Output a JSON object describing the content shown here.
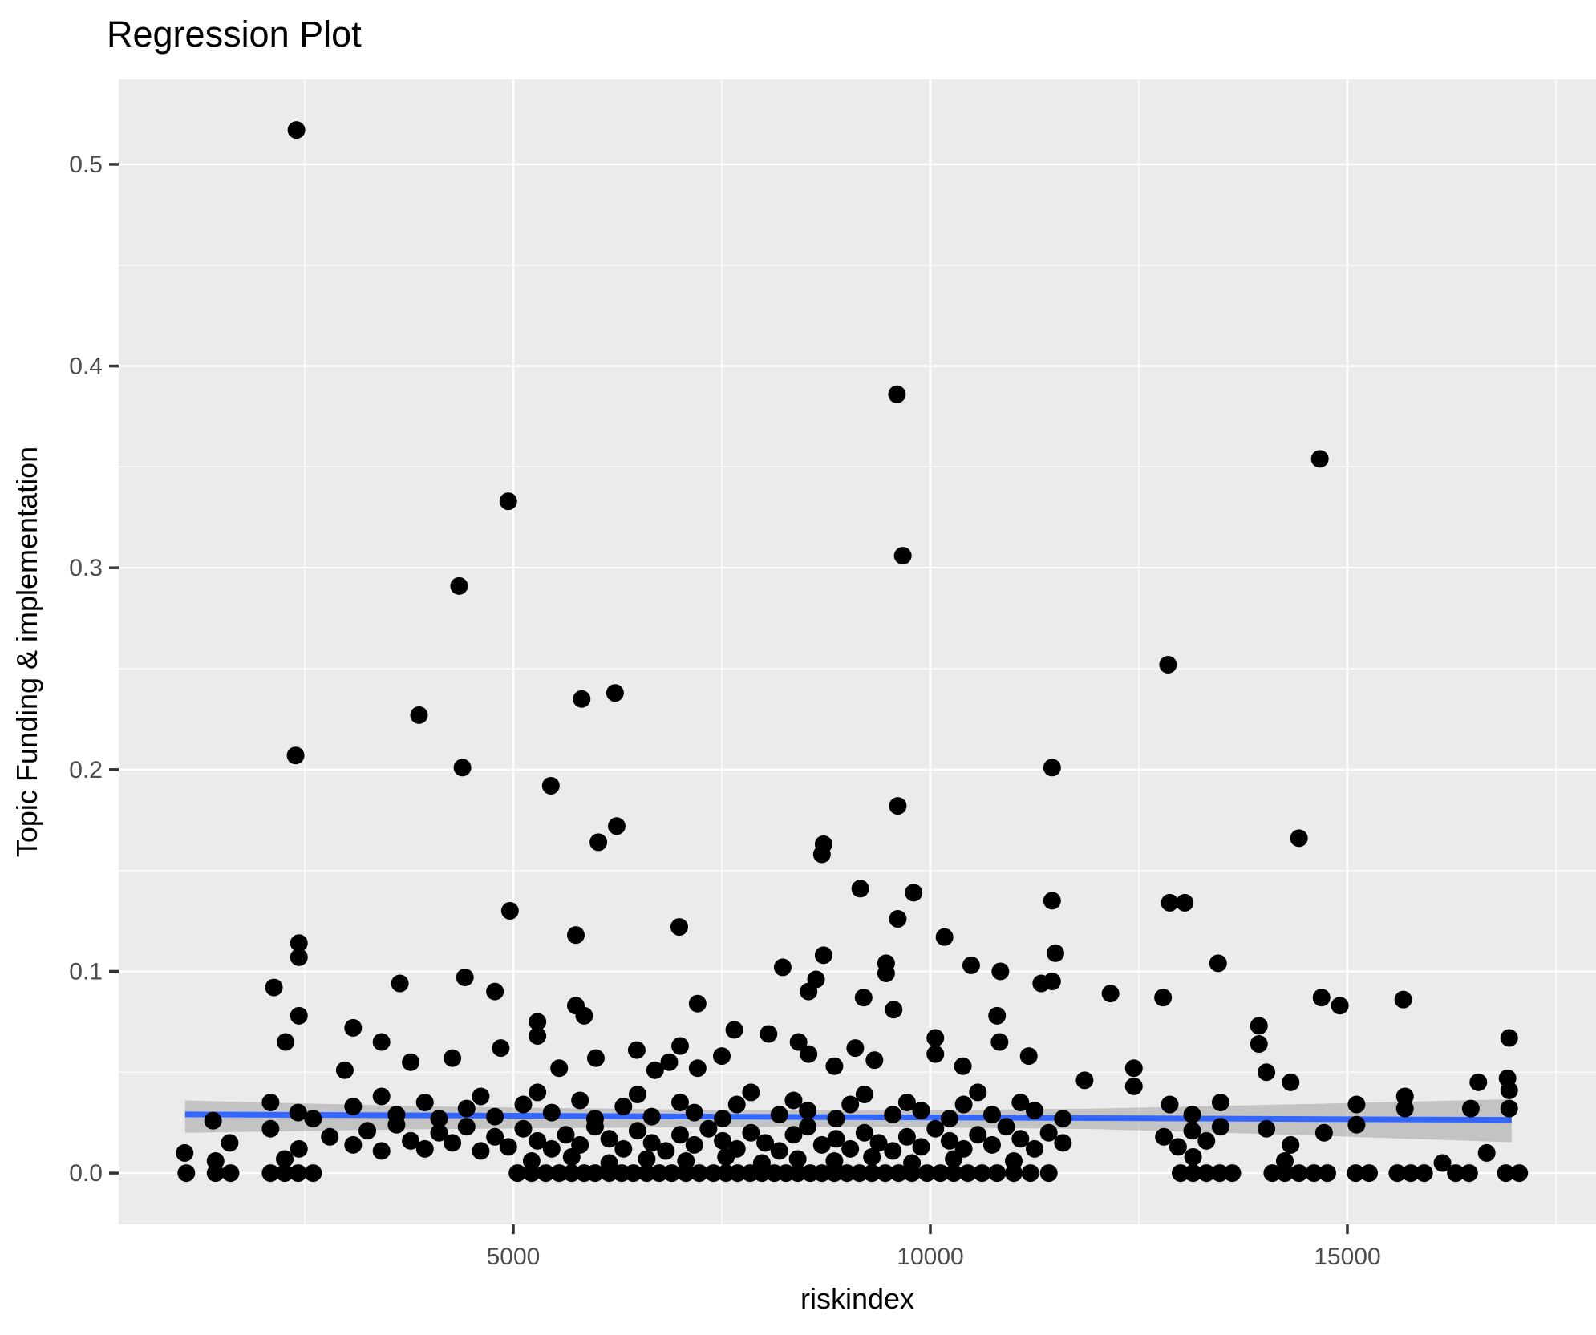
{
  "chart": {
    "title": "Regression Plot",
    "xlabel": "riskindex",
    "ylabel": "Topic Funding & implementation"
  },
  "chart_data": {
    "type": "scatter",
    "title": "Regression Plot",
    "xlabel": "riskindex",
    "ylabel": "Topic Funding & implementation",
    "legend": false,
    "grid": true,
    "panel_bg": "#EBEBEB",
    "grid_color": "#FFFFFF",
    "point_color": "#000000",
    "smooth_line_color": "#3366FF",
    "band_fill": "#8C8C8C",
    "band_opacity": 0.42,
    "tick_color": "#333333",
    "axis_text_color": "#4D4D4D",
    "x_domain": [
      269,
      17981
    ],
    "y_domain": [
      -0.0254,
      0.5421
    ],
    "x_major_ticks": [
      5000,
      10000,
      15000
    ],
    "x_tick_labels": [
      "5000",
      "10000",
      "15000"
    ],
    "x_minor_gridlines": [
      2500,
      7500,
      12500,
      17500
    ],
    "y_major_ticks": [
      0.0,
      0.1,
      0.2,
      0.3,
      0.4,
      0.5
    ],
    "y_tick_labels": [
      "0.0",
      "0.1",
      "0.2",
      "0.3",
      "0.4",
      "0.5"
    ],
    "y_minor_gridlines": [
      0.05,
      0.15,
      0.25,
      0.35,
      0.45
    ],
    "point_radius": 11,
    "regression_line": [
      [
        1065,
        0.0291
      ],
      [
        16970,
        0.0264
      ]
    ],
    "confidence_band": {
      "upper": [
        [
          1065,
          0.036
        ],
        [
          4000,
          0.033
        ],
        [
          7000,
          0.0315
        ],
        [
          9500,
          0.031
        ],
        [
          12000,
          0.032
        ],
        [
          14500,
          0.0342
        ],
        [
          16970,
          0.0366
        ]
      ],
      "lower": [
        [
          1065,
          0.02
        ],
        [
          4000,
          0.0218
        ],
        [
          7000,
          0.0228
        ],
        [
          9500,
          0.023
        ],
        [
          12000,
          0.0218
        ],
        [
          14500,
          0.0188
        ],
        [
          16970,
          0.0153
        ]
      ]
    },
    "points": [
      [
        2400,
        0.517
      ],
      [
        9600,
        0.386
      ],
      [
        14670,
        0.354
      ],
      [
        4940,
        0.333
      ],
      [
        9670,
        0.306
      ],
      [
        4350,
        0.291
      ],
      [
        12850,
        0.252
      ],
      [
        6220,
        0.238
      ],
      [
        5820,
        0.235
      ],
      [
        3870,
        0.227
      ],
      [
        2390,
        0.207
      ],
      [
        4390,
        0.201
      ],
      [
        11460,
        0.201
      ],
      [
        5450,
        0.192
      ],
      [
        9610,
        0.182
      ],
      [
        6240,
        0.172
      ],
      [
        14420,
        0.166
      ],
      [
        6020,
        0.164
      ],
      [
        8720,
        0.163
      ],
      [
        8700,
        0.158
      ],
      [
        9160,
        0.141
      ],
      [
        9800,
        0.139
      ],
      [
        11460,
        0.135
      ],
      [
        12870,
        0.134
      ],
      [
        13050,
        0.134
      ],
      [
        4960,
        0.13
      ],
      [
        9610,
        0.126
      ],
      [
        6990,
        0.122
      ],
      [
        5750,
        0.118
      ],
      [
        10170,
        0.117
      ],
      [
        2430,
        0.114
      ],
      [
        11500,
        0.109
      ],
      [
        8720,
        0.108
      ],
      [
        2430,
        0.107
      ],
      [
        13450,
        0.104
      ],
      [
        9470,
        0.104
      ],
      [
        10490,
        0.103
      ],
      [
        8230,
        0.102
      ],
      [
        10840,
        0.1
      ],
      [
        9470,
        0.099
      ],
      [
        4420,
        0.097
      ],
      [
        8630,
        0.096
      ],
      [
        11460,
        0.095
      ],
      [
        11330,
        0.094
      ],
      [
        3640,
        0.094
      ],
      [
        2130,
        0.092
      ],
      [
        8540,
        0.09
      ],
      [
        4780,
        0.09
      ],
      [
        12160,
        0.089
      ],
      [
        12790,
        0.087
      ],
      [
        14690,
        0.087
      ],
      [
        9200,
        0.087
      ],
      [
        15670,
        0.086
      ],
      [
        7210,
        0.084
      ],
      [
        5750,
        0.083
      ],
      [
        14910,
        0.083
      ],
      [
        9560,
        0.081
      ],
      [
        10800,
        0.078
      ],
      [
        2430,
        0.078
      ],
      [
        5850,
        0.078
      ],
      [
        13940,
        0.073
      ],
      [
        16940,
        0.067
      ],
      [
        13940,
        0.064
      ],
      [
        2270,
        0.065
      ],
      [
        3080,
        0.072
      ],
      [
        7650,
        0.071
      ],
      [
        8060,
        0.069
      ],
      [
        5290,
        0.075
      ],
      [
        5290,
        0.068
      ],
      [
        10060,
        0.067
      ],
      [
        3420,
        0.065
      ],
      [
        8420,
        0.065
      ],
      [
        10830,
        0.065
      ],
      [
        7000,
        0.063
      ],
      [
        9100,
        0.062
      ],
      [
        4850,
        0.062
      ],
      [
        6480,
        0.061
      ],
      [
        10060,
        0.059
      ],
      [
        8540,
        0.059
      ],
      [
        7500,
        0.058
      ],
      [
        11180,
        0.058
      ],
      [
        5990,
        0.057
      ],
      [
        4270,
        0.057
      ],
      [
        9330,
        0.056
      ],
      [
        6870,
        0.055
      ],
      [
        3770,
        0.055
      ],
      [
        8850,
        0.053
      ],
      [
        10390,
        0.053
      ],
      [
        12440,
        0.052
      ],
      [
        7210,
        0.052
      ],
      [
        5550,
        0.052
      ],
      [
        2980,
        0.051
      ],
      [
        6700,
        0.051
      ],
      [
        14030,
        0.05
      ],
      [
        16920,
        0.047
      ],
      [
        16940,
        0.041
      ],
      [
        16570,
        0.045
      ],
      [
        14320,
        0.045
      ],
      [
        12440,
        0.043
      ],
      [
        11850,
        0.046
      ],
      [
        1400,
        0.026
      ],
      [
        2090,
        0.035
      ],
      [
        2420,
        0.03
      ],
      [
        2600,
        0.027
      ],
      [
        3080,
        0.033
      ],
      [
        3420,
        0.038
      ],
      [
        3600,
        0.029
      ],
      [
        3940,
        0.035
      ],
      [
        4110,
        0.027
      ],
      [
        4440,
        0.032
      ],
      [
        4610,
        0.038
      ],
      [
        4780,
        0.028
      ],
      [
        5120,
        0.034
      ],
      [
        5290,
        0.04
      ],
      [
        5460,
        0.03
      ],
      [
        5800,
        0.036
      ],
      [
        5980,
        0.027
      ],
      [
        6320,
        0.033
      ],
      [
        6490,
        0.039
      ],
      [
        6660,
        0.028
      ],
      [
        7000,
        0.035
      ],
      [
        7170,
        0.03
      ],
      [
        7510,
        0.027
      ],
      [
        7680,
        0.034
      ],
      [
        7850,
        0.04
      ],
      [
        8190,
        0.029
      ],
      [
        8360,
        0.036
      ],
      [
        8530,
        0.031
      ],
      [
        8870,
        0.027
      ],
      [
        9040,
        0.034
      ],
      [
        9210,
        0.039
      ],
      [
        9550,
        0.029
      ],
      [
        9720,
        0.035
      ],
      [
        9890,
        0.031
      ],
      [
        10230,
        0.027
      ],
      [
        10400,
        0.034
      ],
      [
        10570,
        0.04
      ],
      [
        10740,
        0.029
      ],
      [
        11080,
        0.035
      ],
      [
        11250,
        0.031
      ],
      [
        11590,
        0.027
      ],
      [
        12870,
        0.034
      ],
      [
        13140,
        0.029
      ],
      [
        13480,
        0.035
      ],
      [
        15110,
        0.034
      ],
      [
        15110,
        0.024
      ],
      [
        15690,
        0.038
      ],
      [
        15690,
        0.032
      ],
      [
        16480,
        0.032
      ],
      [
        16940,
        0.032
      ],
      [
        1060,
        0.01
      ],
      [
        1600,
        0.015
      ],
      [
        2090,
        0.022
      ],
      [
        2430,
        0.012
      ],
      [
        2800,
        0.018
      ],
      [
        3080,
        0.014
      ],
      [
        3250,
        0.021
      ],
      [
        3420,
        0.011
      ],
      [
        3600,
        0.024
      ],
      [
        3770,
        0.016
      ],
      [
        3940,
        0.012
      ],
      [
        4110,
        0.02
      ],
      [
        4270,
        0.015
      ],
      [
        4440,
        0.023
      ],
      [
        4610,
        0.011
      ],
      [
        4780,
        0.018
      ],
      [
        4940,
        0.013
      ],
      [
        5120,
        0.022
      ],
      [
        5290,
        0.016
      ],
      [
        5460,
        0.012
      ],
      [
        5630,
        0.019
      ],
      [
        5800,
        0.014
      ],
      [
        5980,
        0.023
      ],
      [
        6150,
        0.017
      ],
      [
        6320,
        0.012
      ],
      [
        6490,
        0.021
      ],
      [
        6660,
        0.015
      ],
      [
        6830,
        0.011
      ],
      [
        7000,
        0.019
      ],
      [
        7170,
        0.014
      ],
      [
        7340,
        0.022
      ],
      [
        7510,
        0.016
      ],
      [
        7680,
        0.012
      ],
      [
        7850,
        0.02
      ],
      [
        8020,
        0.015
      ],
      [
        8190,
        0.011
      ],
      [
        8360,
        0.019
      ],
      [
        8530,
        0.023
      ],
      [
        8700,
        0.014
      ],
      [
        8870,
        0.017
      ],
      [
        9040,
        0.012
      ],
      [
        9210,
        0.02
      ],
      [
        9380,
        0.015
      ],
      [
        9550,
        0.011
      ],
      [
        9720,
        0.018
      ],
      [
        9890,
        0.013
      ],
      [
        10060,
        0.022
      ],
      [
        10230,
        0.016
      ],
      [
        10400,
        0.012
      ],
      [
        10570,
        0.019
      ],
      [
        10740,
        0.014
      ],
      [
        10910,
        0.023
      ],
      [
        11080,
        0.017
      ],
      [
        11250,
        0.012
      ],
      [
        11420,
        0.02
      ],
      [
        11590,
        0.015
      ],
      [
        12800,
        0.018
      ],
      [
        12970,
        0.013
      ],
      [
        13140,
        0.021
      ],
      [
        13310,
        0.016
      ],
      [
        13480,
        0.023
      ],
      [
        14030,
        0.022
      ],
      [
        14320,
        0.014
      ],
      [
        14720,
        0.02
      ],
      [
        16670,
        0.01
      ],
      [
        16140,
        0.005
      ],
      [
        1080,
        0
      ],
      [
        1430,
        0
      ],
      [
        1610,
        0
      ],
      [
        2090,
        0
      ],
      [
        2260,
        0
      ],
      [
        2420,
        0
      ],
      [
        2600,
        0
      ],
      [
        5050,
        0
      ],
      [
        5220,
        0
      ],
      [
        5390,
        0
      ],
      [
        5550,
        0
      ],
      [
        5700,
        0
      ],
      [
        5850,
        0
      ],
      [
        5980,
        0
      ],
      [
        6150,
        0
      ],
      [
        6300,
        0
      ],
      [
        6440,
        0
      ],
      [
        6600,
        0
      ],
      [
        6750,
        0
      ],
      [
        6900,
        0
      ],
      [
        7070,
        0
      ],
      [
        7230,
        0
      ],
      [
        7400,
        0
      ],
      [
        7550,
        0
      ],
      [
        7690,
        0
      ],
      [
        7840,
        0
      ],
      [
        7980,
        0
      ],
      [
        8130,
        0
      ],
      [
        8270,
        0
      ],
      [
        8410,
        0
      ],
      [
        8560,
        0
      ],
      [
        8700,
        0
      ],
      [
        8850,
        0
      ],
      [
        9000,
        0
      ],
      [
        9150,
        0
      ],
      [
        9300,
        0
      ],
      [
        9460,
        0
      ],
      [
        9620,
        0
      ],
      [
        9780,
        0
      ],
      [
        9960,
        0
      ],
      [
        10120,
        0
      ],
      [
        10280,
        0
      ],
      [
        10450,
        0
      ],
      [
        10620,
        0
      ],
      [
        10800,
        0
      ],
      [
        11000,
        0
      ],
      [
        11200,
        0
      ],
      [
        11420,
        0
      ],
      [
        13000,
        0
      ],
      [
        13150,
        0
      ],
      [
        13310,
        0
      ],
      [
        13470,
        0
      ],
      [
        13620,
        0
      ],
      [
        14100,
        0
      ],
      [
        14250,
        0
      ],
      [
        14420,
        0
      ],
      [
        14600,
        0
      ],
      [
        14760,
        0
      ],
      [
        15100,
        0
      ],
      [
        15260,
        0
      ],
      [
        15600,
        0
      ],
      [
        15760,
        0
      ],
      [
        15920,
        0
      ],
      [
        16300,
        0
      ],
      [
        16460,
        0
      ],
      [
        16900,
        0
      ],
      [
        17060,
        0
      ],
      [
        1430,
        0.006
      ],
      [
        2260,
        0.007
      ],
      [
        5220,
        0.006
      ],
      [
        5700,
        0.008
      ],
      [
        6150,
        0.005
      ],
      [
        6600,
        0.007
      ],
      [
        7070,
        0.006
      ],
      [
        7550,
        0.008
      ],
      [
        7980,
        0.005
      ],
      [
        8410,
        0.007
      ],
      [
        8850,
        0.006
      ],
      [
        9300,
        0.008
      ],
      [
        9780,
        0.005
      ],
      [
        10280,
        0.007
      ],
      [
        11000,
        0.006
      ],
      [
        13150,
        0.008
      ],
      [
        14250,
        0.006
      ]
    ]
  }
}
